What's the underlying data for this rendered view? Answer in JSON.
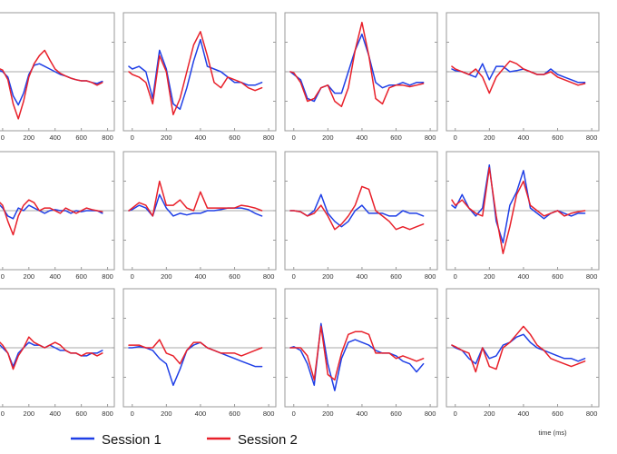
{
  "chart_data": {
    "type": "line",
    "layout": "3 rows x 4 columns of small-multiple panels",
    "x_ticks": [
      0,
      200,
      400,
      600,
      800
    ],
    "xlim": [
      -20,
      810
    ],
    "ylim": [
      -1,
      1
    ],
    "grid": false,
    "zero_line": true,
    "xlabel": "time (ms)",
    "legend": {
      "placement": "bottom",
      "entries": [
        {
          "name": "Session 1",
          "color": "#1f3fe6"
        },
        {
          "name": "Session 2",
          "color": "#e8202a"
        }
      ]
    },
    "x": [
      -20,
      0,
      40,
      80,
      120,
      160,
      200,
      240,
      280,
      320,
      360,
      400,
      440,
      480,
      520,
      560,
      600,
      640,
      680,
      720,
      760
    ],
    "panels": [
      {
        "series": [
          {
            "name": "Session 1",
            "values": [
              0.02,
              0.0,
              -0.1,
              -0.45,
              -0.62,
              -0.4,
              -0.05,
              0.12,
              0.15,
              0.1,
              0.05,
              0.0,
              -0.05,
              -0.08,
              -0.12,
              -0.15,
              -0.17,
              -0.17,
              -0.2,
              -0.22,
              -0.18
            ]
          },
          {
            "name": "Session 2",
            "values": [
              0.05,
              0.03,
              -0.15,
              -0.6,
              -0.88,
              -0.55,
              -0.1,
              0.15,
              0.3,
              0.4,
              0.22,
              0.05,
              -0.03,
              -0.08,
              -0.12,
              -0.15,
              -0.17,
              -0.17,
              -0.2,
              -0.25,
              -0.2
            ]
          }
        ]
      },
      {
        "series": [
          {
            "name": "Session 1",
            "values": [
              0.1,
              0.05,
              0.1,
              0.0,
              -0.5,
              0.4,
              0.05,
              -0.6,
              -0.7,
              -0.3,
              0.2,
              0.6,
              0.1,
              0.05,
              0.0,
              -0.1,
              -0.2,
              -0.2,
              -0.25,
              -0.25,
              -0.2
            ]
          },
          {
            "name": "Session 2",
            "values": [
              0.0,
              -0.05,
              -0.1,
              -0.2,
              -0.6,
              0.3,
              0.0,
              -0.8,
              -0.5,
              0.0,
              0.5,
              0.75,
              0.3,
              -0.2,
              -0.3,
              -0.1,
              -0.15,
              -0.2,
              -0.3,
              -0.35,
              -0.3
            ]
          }
        ]
      },
      {
        "series": [
          {
            "name": "Session 1",
            "values": [
              0.0,
              -0.05,
              -0.15,
              -0.5,
              -0.55,
              -0.3,
              -0.25,
              -0.4,
              -0.4,
              0.0,
              0.4,
              0.7,
              0.3,
              -0.2,
              -0.3,
              -0.25,
              -0.25,
              -0.2,
              -0.25,
              -0.2,
              -0.2
            ]
          },
          {
            "name": "Session 2",
            "values": [
              0.0,
              -0.02,
              -0.2,
              -0.55,
              -0.5,
              -0.3,
              -0.25,
              -0.55,
              -0.65,
              -0.3,
              0.4,
              0.92,
              0.3,
              -0.5,
              -0.6,
              -0.3,
              -0.25,
              -0.25,
              -0.28,
              -0.25,
              -0.22
            ]
          }
        ]
      },
      {
        "series": [
          {
            "name": "Session 1",
            "values": [
              0.05,
              0.02,
              0.0,
              -0.05,
              -0.1,
              0.15,
              -0.15,
              0.1,
              0.1,
              0.0,
              0.02,
              0.05,
              0.0,
              -0.05,
              -0.05,
              0.05,
              -0.05,
              -0.1,
              -0.15,
              -0.2,
              -0.2
            ]
          },
          {
            "name": "Session 2",
            "values": [
              0.1,
              0.05,
              0.0,
              -0.05,
              0.05,
              -0.1,
              -0.4,
              -0.1,
              0.05,
              0.2,
              0.15,
              0.05,
              0.0,
              -0.05,
              -0.05,
              0.0,
              -0.1,
              -0.15,
              -0.2,
              -0.25,
              -0.22
            ]
          }
        ]
      },
      {
        "series": [
          {
            "name": "Session 1",
            "values": [
              0.1,
              0.05,
              -0.1,
              -0.15,
              0.05,
              0.0,
              0.1,
              0.05,
              0.0,
              -0.05,
              0.0,
              0.02,
              0.0,
              0.0,
              -0.05,
              0.0,
              -0.02,
              0.0,
              0.0,
              0.0,
              -0.05
            ]
          },
          {
            "name": "Session 2",
            "values": [
              0.15,
              0.1,
              -0.2,
              -0.45,
              -0.1,
              0.1,
              0.2,
              0.15,
              0.0,
              0.05,
              0.05,
              0.0,
              -0.05,
              0.05,
              0.0,
              -0.05,
              0.0,
              0.05,
              0.02,
              0.0,
              -0.02
            ]
          }
        ]
      },
      {
        "series": [
          {
            "name": "Session 1",
            "values": [
              0.0,
              0.02,
              0.1,
              0.05,
              -0.1,
              0.3,
              0.05,
              -0.1,
              -0.05,
              -0.08,
              -0.05,
              -0.05,
              0.0,
              0.0,
              0.02,
              0.05,
              0.05,
              0.05,
              0.02,
              -0.05,
              -0.1
            ]
          },
          {
            "name": "Session 2",
            "values": [
              0.0,
              0.05,
              0.15,
              0.1,
              -0.1,
              0.55,
              0.1,
              0.1,
              0.2,
              0.05,
              0.0,
              0.35,
              0.05,
              0.05,
              0.05,
              0.05,
              0.05,
              0.1,
              0.08,
              0.05,
              0.0
            ]
          }
        ]
      },
      {
        "series": [
          {
            "name": "Session 1",
            "values": [
              0.0,
              0.0,
              -0.02,
              -0.1,
              0.0,
              0.3,
              -0.05,
              -0.2,
              -0.3,
              -0.2,
              0.0,
              0.1,
              -0.05,
              -0.05,
              -0.05,
              -0.1,
              -0.1,
              0.0,
              -0.05,
              -0.05,
              -0.1
            ]
          },
          {
            "name": "Session 2",
            "values": [
              0.0,
              0.0,
              -0.02,
              -0.1,
              -0.05,
              0.1,
              -0.1,
              -0.35,
              -0.25,
              -0.1,
              0.1,
              0.45,
              0.4,
              0.0,
              -0.1,
              -0.2,
              -0.35,
              -0.3,
              -0.35,
              -0.3,
              -0.25
            ]
          }
        ]
      },
      {
        "series": [
          {
            "name": "Session 1",
            "values": [
              0.1,
              0.05,
              0.3,
              0.05,
              -0.1,
              0.05,
              0.85,
              -0.2,
              -0.6,
              0.1,
              0.35,
              0.75,
              0.05,
              -0.05,
              -0.15,
              -0.05,
              0.0,
              -0.05,
              -0.1,
              -0.05,
              -0.05
            ]
          },
          {
            "name": "Session 2",
            "values": [
              0.2,
              0.1,
              0.2,
              0.05,
              -0.05,
              -0.1,
              0.8,
              -0.1,
              -0.8,
              -0.3,
              0.3,
              0.55,
              0.1,
              0.0,
              -0.1,
              -0.05,
              0.0,
              -0.1,
              -0.05,
              -0.02,
              0.0
            ]
          }
        ]
      },
      {
        "series": [
          {
            "name": "Session 1",
            "values": [
              0.05,
              0.0,
              -0.1,
              -0.35,
              -0.1,
              0.0,
              0.1,
              0.05,
              0.05,
              0.0,
              0.05,
              0.0,
              -0.05,
              -0.05,
              -0.1,
              -0.1,
              -0.15,
              -0.15,
              -0.1,
              -0.1,
              -0.05
            ]
          },
          {
            "name": "Session 2",
            "values": [
              0.1,
              0.05,
              -0.1,
              -0.4,
              -0.15,
              0.0,
              0.2,
              0.1,
              0.05,
              0.0,
              0.05,
              0.1,
              0.05,
              -0.05,
              -0.1,
              -0.1,
              -0.15,
              -0.1,
              -0.1,
              -0.15,
              -0.1
            ]
          }
        ]
      },
      {
        "series": [
          {
            "name": "Session 1",
            "values": [
              0.0,
              0.0,
              0.02,
              0.0,
              -0.05,
              -0.2,
              -0.3,
              -0.7,
              -0.4,
              -0.05,
              0.05,
              0.1,
              0.0,
              -0.05,
              -0.1,
              -0.15,
              -0.2,
              -0.25,
              -0.3,
              -0.35,
              -0.35
            ]
          },
          {
            "name": "Session 2",
            "values": [
              0.05,
              0.05,
              0.05,
              0.0,
              0.0,
              0.15,
              -0.1,
              -0.15,
              -0.3,
              -0.05,
              0.1,
              0.1,
              0.0,
              -0.05,
              -0.1,
              -0.1,
              -0.1,
              -0.15,
              -0.1,
              -0.05,
              0.0
            ]
          }
        ]
      },
      {
        "series": [
          {
            "name": "Session 1",
            "values": [
              0.0,
              0.02,
              -0.05,
              -0.3,
              -0.7,
              0.45,
              -0.3,
              -0.8,
              -0.2,
              0.1,
              0.15,
              0.1,
              0.05,
              -0.05,
              -0.1,
              -0.1,
              -0.15,
              -0.25,
              -0.3,
              -0.45,
              -0.3
            ]
          },
          {
            "name": "Session 2",
            "values": [
              0.0,
              0.0,
              0.0,
              -0.15,
              -0.6,
              0.4,
              -0.5,
              -0.6,
              -0.1,
              0.25,
              0.3,
              0.3,
              0.25,
              -0.1,
              -0.1,
              -0.1,
              -0.2,
              -0.15,
              -0.2,
              -0.25,
              -0.2
            ]
          }
        ]
      },
      {
        "series": [
          {
            "name": "Session 1",
            "values": [
              0.05,
              0.0,
              -0.05,
              -0.2,
              -0.3,
              0.0,
              -0.2,
              -0.15,
              0.05,
              0.1,
              0.2,
              0.25,
              0.1,
              0.0,
              -0.05,
              -0.1,
              -0.15,
              -0.2,
              -0.2,
              -0.25,
              -0.2
            ]
          },
          {
            "name": "Session 2",
            "values": [
              0.05,
              0.02,
              -0.05,
              -0.1,
              -0.45,
              0.0,
              -0.35,
              -0.4,
              0.0,
              0.1,
              0.25,
              0.4,
              0.25,
              0.05,
              -0.05,
              -0.2,
              -0.25,
              -0.3,
              -0.35,
              -0.3,
              -0.25
            ]
          }
        ]
      }
    ]
  }
}
